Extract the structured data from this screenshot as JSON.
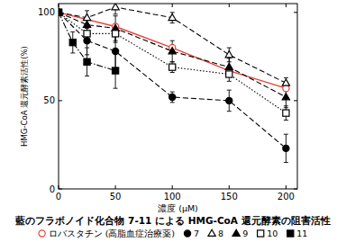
{
  "chart_data": {
    "type": "line",
    "title": "藍のフラボノイド化合物 7-11 による HMG-CoA 還元酵素の阻害活性",
    "x_label": "濃度 (μM)",
    "y_label": "HMG-CoA 還元酵素活性(%)",
    "xlim": [
      0,
      210
    ],
    "ylim": [
      0,
      105
    ],
    "xticks": [
      0,
      50,
      100,
      150,
      200
    ],
    "yticks": [
      0,
      50,
      100
    ],
    "grid": false,
    "legend": "bottom",
    "series": [
      {
        "name": "ロバスタチン (高脂血症治療薬)",
        "color": "#e8423a",
        "marker": "circle-open",
        "line_style": "solid",
        "x": [
          0,
          50,
          100,
          150,
          200
        ],
        "values": [
          100,
          92,
          80,
          67,
          57
        ]
      },
      {
        "name": "7",
        "color": "#000000",
        "marker": "circle",
        "line_style": "dashed",
        "x": [
          0,
          25,
          50,
          100,
          150,
          200
        ],
        "values": [
          100,
          84,
          78,
          52,
          50,
          23
        ],
        "errors": [
          0,
          8,
          12,
          3,
          6,
          8
        ]
      },
      {
        "name": "8",
        "color": "#000000",
        "marker": "triangle-open",
        "line_style": "dashed",
        "x": [
          0,
          25,
          50,
          100,
          150,
          200
        ],
        "values": [
          100,
          97,
          103,
          97,
          76,
          60
        ],
        "errors": [
          0,
          4,
          4,
          3,
          4,
          3
        ]
      },
      {
        "name": "9",
        "color": "#000000",
        "marker": "triangle",
        "line_style": "dashed",
        "x": [
          0,
          25,
          50,
          100,
          150,
          200
        ],
        "values": [
          100,
          93,
          91,
          78,
          69,
          52
        ],
        "errors": [
          0,
          4,
          7,
          6,
          5,
          6
        ]
      },
      {
        "name": "10",
        "color": "#000000",
        "marker": "square-open",
        "line_style": "dotted",
        "x": [
          0,
          25,
          50,
          100,
          150,
          200
        ],
        "values": [
          100,
          88,
          88,
          69,
          65,
          43
        ],
        "errors": [
          0,
          3,
          5,
          3,
          4,
          4
        ]
      },
      {
        "name": "11",
        "color": "#000000",
        "marker": "square",
        "line_style": "dashdot",
        "x": [
          0,
          12.5,
          25,
          50
        ],
        "values": [
          100,
          83,
          72,
          67
        ],
        "errors": [
          0,
          6,
          8,
          10
        ]
      }
    ]
  }
}
